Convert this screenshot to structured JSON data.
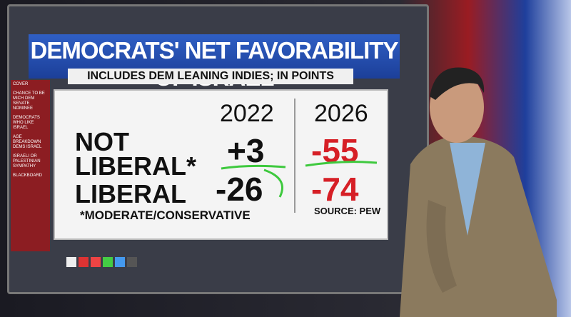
{
  "header": {
    "title": "DEMOCRATS' NET FAVORABILITY OF ISRAEL",
    "subtitle": "INCLUDES DEM LEANING INDIES; IN POINTS"
  },
  "menu": [
    "COVER",
    "CHANCE TO BE MICH DEM SENATE NOMINEE",
    "DEMOCRATS WHO LIKE ISRAEL",
    "AGE BREAKDOWN DEMS ISRAEL",
    "ISRAELI OR PALESTINIAN SYMPATHY",
    "BLACKBOARD"
  ],
  "table": {
    "columns": [
      "2022",
      "2026"
    ],
    "rows": [
      [
        "NOT LIBERAL*",
        "+3",
        "-55"
      ],
      [
        "LIBERAL",
        "-26",
        "-74"
      ]
    ]
  },
  "footnote": "*MODERATE/CONSERVATIVE",
  "source": "SOURCE: PEW"
}
